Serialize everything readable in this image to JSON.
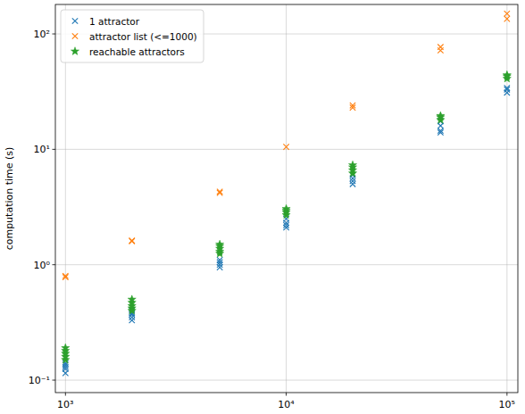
{
  "chart_data": {
    "type": "scatter",
    "ylabel": "computation time (s)",
    "log": true,
    "grid": true,
    "legend": "upper left",
    "xlim": [
      900,
      112000
    ],
    "ylim": [
      0.078,
      180
    ],
    "xticks": [
      {
        "value": 1000,
        "label": "10³"
      },
      {
        "value": 10000,
        "label": "10⁴"
      },
      {
        "value": 100000,
        "label": "10⁵"
      }
    ],
    "yticks": [
      {
        "value": 0.1,
        "label": "10⁻¹"
      },
      {
        "value": 1,
        "label": "10⁰"
      },
      {
        "value": 10,
        "label": "10¹"
      },
      {
        "value": 100,
        "label": "10²"
      }
    ],
    "series": [
      {
        "name": "1 attractor",
        "color": "#1f77b4",
        "marker": "x",
        "x": [
          1000,
          1000,
          1000,
          1000,
          1000,
          2000,
          2000,
          2000,
          2000,
          2000,
          5000,
          5000,
          5000,
          5000,
          10000,
          10000,
          10000,
          10000,
          20000,
          20000,
          20000,
          20000,
          50000,
          50000,
          50000,
          50000,
          100000,
          100000,
          100000
        ],
        "values": [
          0.115,
          0.125,
          0.13,
          0.135,
          0.14,
          0.33,
          0.35,
          0.37,
          0.38,
          0.4,
          0.95,
          1.0,
          1.05,
          1.1,
          2.1,
          2.2,
          2.3,
          2.5,
          5.0,
          5.3,
          5.6,
          6.0,
          14,
          14.5,
          16,
          17.5,
          31,
          33,
          34
        ]
      },
      {
        "name": "attractor list (<=1000)",
        "color": "#ff7f0e",
        "marker": "x",
        "x": [
          1000,
          1000,
          2000,
          2000,
          5000,
          5000,
          10000,
          20000,
          20000,
          50000,
          50000,
          100000,
          100000
        ],
        "values": [
          0.78,
          0.8,
          1.6,
          1.62,
          4.2,
          4.3,
          10.5,
          23,
          24,
          72,
          77,
          135,
          150
        ]
      },
      {
        "name": "reachable attractors",
        "color": "#2ca02c",
        "marker": "star",
        "x": [
          1000,
          1000,
          1000,
          1000,
          1000,
          2000,
          2000,
          2000,
          2000,
          2000,
          5000,
          5000,
          5000,
          5000,
          5000,
          10000,
          10000,
          10000,
          10000,
          20000,
          20000,
          20000,
          20000,
          50000,
          50000,
          50000,
          100000,
          100000,
          100000
        ],
        "values": [
          0.15,
          0.16,
          0.17,
          0.18,
          0.19,
          0.4,
          0.42,
          0.44,
          0.47,
          0.5,
          1.25,
          1.3,
          1.38,
          1.45,
          1.5,
          2.7,
          2.85,
          2.95,
          3.05,
          6.2,
          6.6,
          7.0,
          7.3,
          18,
          19,
          19.5,
          41,
          43,
          44
        ]
      }
    ]
  }
}
